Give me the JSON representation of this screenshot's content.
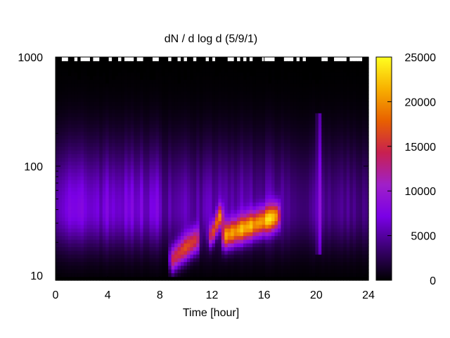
{
  "chart_data": {
    "type": "heatmap",
    "title": "dN / d log d (5/9/1)",
    "xlabel": "Time [hour]",
    "ylabel": "",
    "xlim": [
      0,
      24
    ],
    "ylim": [
      9,
      1000
    ],
    "y_scale": "log",
    "x_ticks": [
      0,
      4,
      8,
      12,
      16,
      20,
      24
    ],
    "x_tick_labels": [
      "0",
      "4",
      "8",
      "12",
      "16",
      "20",
      "24"
    ],
    "y_ticks": [
      10,
      100,
      1000
    ],
    "y_tick_labels": [
      "10",
      "100",
      "1000"
    ],
    "colorbar": {
      "range": [
        0,
        25000
      ],
      "ticks": [
        0,
        5000,
        10000,
        15000,
        20000,
        25000
      ],
      "tick_labels": [
        "0",
        "5000",
        "10000",
        "15000",
        "20000",
        "25000"
      ],
      "colors": [
        "#000000",
        "#3a0070",
        "#7a00e6",
        "#a020c8",
        "#c82050",
        "#e86000",
        "#f8b000",
        "#ffff20"
      ]
    },
    "features": [
      {
        "type": "background",
        "y_peak": 40,
        "log_width": 0.35,
        "value": 6000
      },
      {
        "type": "blob",
        "t_range": [
          9.0,
          10.8
        ],
        "y_center": 14,
        "log_width_y": 0.12,
        "value": 14000
      },
      {
        "type": "blob",
        "t_range": [
          12.0,
          12.6
        ],
        "y_center": 23,
        "log_width_y": 0.1,
        "value": 13500
      },
      {
        "type": "blob",
        "t_range": [
          13.0,
          17.0
        ],
        "y_start": 23,
        "y_end": 35,
        "log_width_y": 0.12,
        "value": 17000
      },
      {
        "type": "streak",
        "t_center": 20.2,
        "y_range": [
          15,
          300
        ],
        "value": 6500
      }
    ]
  }
}
